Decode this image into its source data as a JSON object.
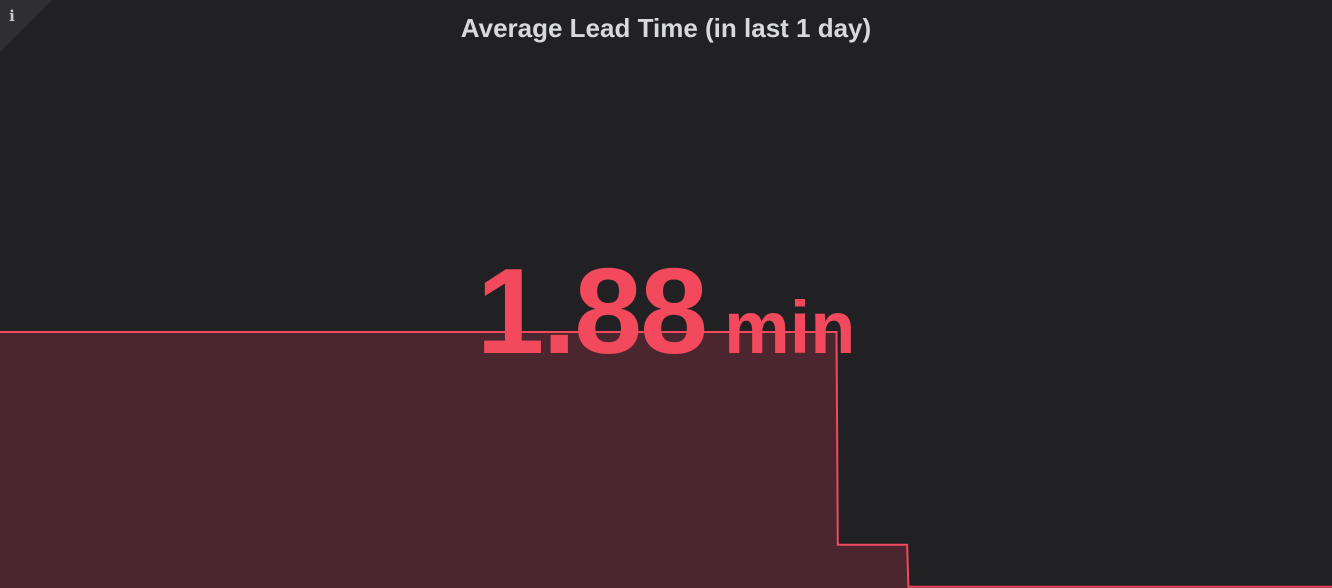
{
  "panel": {
    "title": "Average Lead Time (in last 1 day)",
    "info_icon": "info-icon",
    "info_glyph": "i",
    "stat": {
      "value": "1.88",
      "unit": "min",
      "color": "#f2495c"
    },
    "background_color": "#212124",
    "fill_color": "#4b262f"
  },
  "chart_data": {
    "type": "area",
    "x": [
      0,
      0.628,
      0.629,
      0.681,
      0.682,
      1.0
    ],
    "y": [
      1.0,
      1.0,
      0.24,
      0.24,
      0.09,
      0.09
    ],
    "line_shape": "step",
    "color": "#f2495c",
    "title": "",
    "xlabel": "",
    "ylabel": ""
  }
}
